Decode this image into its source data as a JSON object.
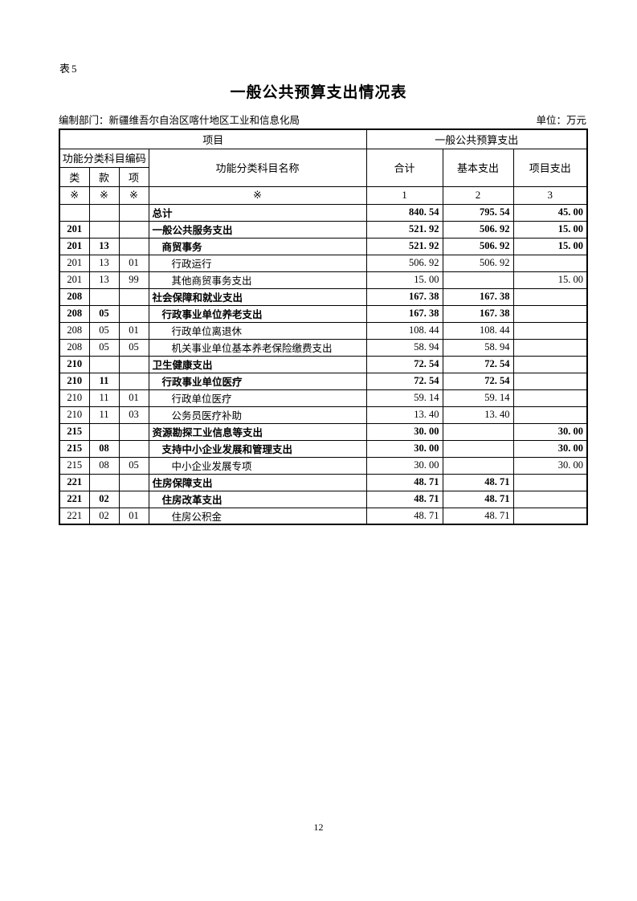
{
  "page": {
    "sheet_label": "表5",
    "title": "一般公共预算支出情况表",
    "department": "编制部门：新疆维吾尔自治区喀什地区工业和信息化局",
    "unit": "单位：万元",
    "page_number": "12"
  },
  "colors": {
    "text": "#000000",
    "border": "#000000",
    "background": "#ffffff"
  },
  "table": {
    "header": {
      "project_group": "项目",
      "budget_group": "一般公共预算支出",
      "code_group": "功能分类科目编码",
      "subject_name": "功能分类科目名称",
      "col_total": "合计",
      "col_basic": "基本支出",
      "col_project": "项目支出",
      "code_class": "类",
      "code_section": "款",
      "code_item": "项",
      "ref_row": [
        "※",
        "※",
        "※",
        "※",
        "1",
        "2",
        "3"
      ]
    },
    "rows": [
      {
        "code_class": "",
        "code_section": "",
        "code_item": "",
        "name": "总计",
        "indent": 0,
        "bold": true,
        "total": "840. 54",
        "basic": "795. 54",
        "project": "45. 00"
      },
      {
        "code_class": "201",
        "code_section": "",
        "code_item": "",
        "name": "一般公共服务支出",
        "indent": 0,
        "bold": true,
        "total": "521. 92",
        "basic": "506. 92",
        "project": "15. 00"
      },
      {
        "code_class": "201",
        "code_section": "13",
        "code_item": "",
        "name": "商贸事务",
        "indent": 1,
        "bold": true,
        "total": "521. 92",
        "basic": "506. 92",
        "project": "15. 00"
      },
      {
        "code_class": "201",
        "code_section": "13",
        "code_item": "01",
        "name": "行政运行",
        "indent": 2,
        "bold": false,
        "total": "506. 92",
        "basic": "506. 92",
        "project": ""
      },
      {
        "code_class": "201",
        "code_section": "13",
        "code_item": "99",
        "name": "其他商贸事务支出",
        "indent": 2,
        "bold": false,
        "total": "15. 00",
        "basic": "",
        "project": "15. 00"
      },
      {
        "code_class": "208",
        "code_section": "",
        "code_item": "",
        "name": "社会保障和就业支出",
        "indent": 0,
        "bold": true,
        "total": "167. 38",
        "basic": "167. 38",
        "project": ""
      },
      {
        "code_class": "208",
        "code_section": "05",
        "code_item": "",
        "name": "行政事业单位养老支出",
        "indent": 1,
        "bold": true,
        "total": "167. 38",
        "basic": "167. 38",
        "project": ""
      },
      {
        "code_class": "208",
        "code_section": "05",
        "code_item": "01",
        "name": "行政单位离退休",
        "indent": 2,
        "bold": false,
        "total": "108. 44",
        "basic": "108. 44",
        "project": ""
      },
      {
        "code_class": "208",
        "code_section": "05",
        "code_item": "05",
        "name": "机关事业单位基本养老保险缴费支出",
        "indent": 2,
        "bold": false,
        "total": "58. 94",
        "basic": "58. 94",
        "project": ""
      },
      {
        "code_class": "210",
        "code_section": "",
        "code_item": "",
        "name": "卫生健康支出",
        "indent": 0,
        "bold": true,
        "total": "72. 54",
        "basic": "72. 54",
        "project": ""
      },
      {
        "code_class": "210",
        "code_section": "11",
        "code_item": "",
        "name": "行政事业单位医疗",
        "indent": 1,
        "bold": true,
        "total": "72. 54",
        "basic": "72. 54",
        "project": ""
      },
      {
        "code_class": "210",
        "code_section": "11",
        "code_item": "01",
        "name": "行政单位医疗",
        "indent": 2,
        "bold": false,
        "total": "59. 14",
        "basic": "59. 14",
        "project": ""
      },
      {
        "code_class": "210",
        "code_section": "11",
        "code_item": "03",
        "name": "公务员医疗补助",
        "indent": 2,
        "bold": false,
        "total": "13. 40",
        "basic": "13. 40",
        "project": ""
      },
      {
        "code_class": "215",
        "code_section": "",
        "code_item": "",
        "name": "资源勘探工业信息等支出",
        "indent": 0,
        "bold": true,
        "total": "30. 00",
        "basic": "",
        "project": "30. 00"
      },
      {
        "code_class": "215",
        "code_section": "08",
        "code_item": "",
        "name": "支持中小企业发展和管理支出",
        "indent": 1,
        "bold": true,
        "total": "30. 00",
        "basic": "",
        "project": "30. 00"
      },
      {
        "code_class": "215",
        "code_section": "08",
        "code_item": "05",
        "name": "中小企业发展专项",
        "indent": 2,
        "bold": false,
        "total": "30. 00",
        "basic": "",
        "project": "30. 00"
      },
      {
        "code_class": "221",
        "code_section": "",
        "code_item": "",
        "name": "住房保障支出",
        "indent": 0,
        "bold": true,
        "total": "48. 71",
        "basic": "48. 71",
        "project": ""
      },
      {
        "code_class": "221",
        "code_section": "02",
        "code_item": "",
        "name": "住房改革支出",
        "indent": 1,
        "bold": true,
        "total": "48. 71",
        "basic": "48. 71",
        "project": ""
      },
      {
        "code_class": "221",
        "code_section": "02",
        "code_item": "01",
        "name": "住房公积金",
        "indent": 2,
        "bold": false,
        "total": "48. 71",
        "basic": "48. 71",
        "project": ""
      }
    ]
  }
}
